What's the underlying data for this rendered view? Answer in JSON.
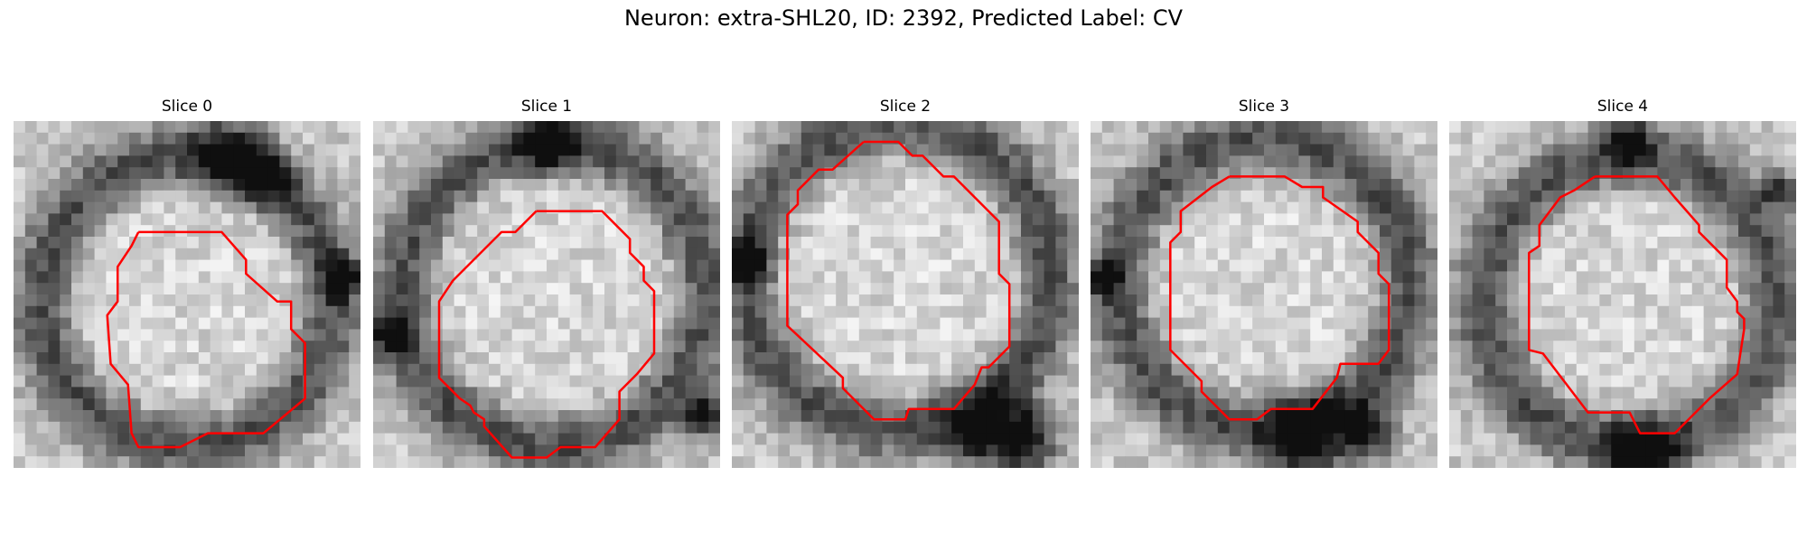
{
  "figure": {
    "title": "Neuron: extra-SHL20, ID: 2392, Predicted Label: CV"
  },
  "panels": [
    {
      "title": "Slice 0",
      "contour_color": "#ff0000",
      "center": [
        0.5,
        0.52
      ],
      "radius": 0.42,
      "ring_width": 0.09,
      "dark_spots": [
        [
          0.62,
          0.1,
          0.1
        ],
        [
          0.72,
          0.15,
          0.07
        ],
        [
          0.95,
          0.45,
          0.06
        ]
      ],
      "contour": [
        [
          0.36,
          0.32
        ],
        [
          0.6,
          0.32
        ],
        [
          0.67,
          0.4
        ],
        [
          0.67,
          0.44
        ],
        [
          0.76,
          0.52
        ],
        [
          0.8,
          0.52
        ],
        [
          0.8,
          0.6
        ],
        [
          0.84,
          0.64
        ],
        [
          0.84,
          0.8
        ],
        [
          0.72,
          0.9
        ],
        [
          0.56,
          0.9
        ],
        [
          0.48,
          0.94
        ],
        [
          0.36,
          0.94
        ],
        [
          0.34,
          0.9
        ],
        [
          0.33,
          0.76
        ],
        [
          0.28,
          0.7
        ],
        [
          0.27,
          0.56
        ],
        [
          0.3,
          0.52
        ],
        [
          0.3,
          0.42
        ],
        [
          0.34,
          0.36
        ]
      ]
    },
    {
      "title": "Slice 1",
      "contour_color": "#ff0000",
      "center": [
        0.52,
        0.5
      ],
      "radius": 0.44,
      "ring_width": 0.09,
      "dark_spots": [
        [
          0.5,
          0.06,
          0.08
        ],
        [
          0.04,
          0.62,
          0.06
        ],
        [
          0.96,
          0.85,
          0.07
        ]
      ],
      "contour": [
        [
          0.47,
          0.26
        ],
        [
          0.66,
          0.26
        ],
        [
          0.74,
          0.34
        ],
        [
          0.74,
          0.38
        ],
        [
          0.78,
          0.42
        ],
        [
          0.78,
          0.46
        ],
        [
          0.81,
          0.49
        ],
        [
          0.81,
          0.67
        ],
        [
          0.76,
          0.73
        ],
        [
          0.71,
          0.78
        ],
        [
          0.71,
          0.86
        ],
        [
          0.64,
          0.94
        ],
        [
          0.54,
          0.94
        ],
        [
          0.5,
          0.97
        ],
        [
          0.4,
          0.97
        ],
        [
          0.32,
          0.88
        ],
        [
          0.32,
          0.86
        ],
        [
          0.29,
          0.84
        ],
        [
          0.28,
          0.82
        ],
        [
          0.25,
          0.8
        ],
        [
          0.19,
          0.74
        ],
        [
          0.19,
          0.52
        ],
        [
          0.23,
          0.46
        ],
        [
          0.37,
          0.32
        ],
        [
          0.41,
          0.32
        ]
      ]
    },
    {
      "title": "Slice 2",
      "contour_color": "#ff0000",
      "center": [
        0.48,
        0.45
      ],
      "radius": 0.44,
      "ring_width": 0.09,
      "dark_spots": [
        [
          0.74,
          0.9,
          0.12
        ],
        [
          0.86,
          0.92,
          0.08
        ],
        [
          0.04,
          0.4,
          0.06
        ]
      ],
      "contour": [
        [
          0.38,
          0.06
        ],
        [
          0.48,
          0.06
        ],
        [
          0.52,
          0.1
        ],
        [
          0.55,
          0.1
        ],
        [
          0.61,
          0.16
        ],
        [
          0.64,
          0.16
        ],
        [
          0.77,
          0.29
        ],
        [
          0.77,
          0.44
        ],
        [
          0.8,
          0.47
        ],
        [
          0.8,
          0.65
        ],
        [
          0.74,
          0.71
        ],
        [
          0.72,
          0.71
        ],
        [
          0.7,
          0.76
        ],
        [
          0.64,
          0.83
        ],
        [
          0.51,
          0.83
        ],
        [
          0.5,
          0.86
        ],
        [
          0.41,
          0.86
        ],
        [
          0.32,
          0.77
        ],
        [
          0.32,
          0.74
        ],
        [
          0.16,
          0.59
        ],
        [
          0.16,
          0.27
        ],
        [
          0.19,
          0.24
        ],
        [
          0.19,
          0.2
        ],
        [
          0.25,
          0.14
        ],
        [
          0.29,
          0.14
        ]
      ]
    },
    {
      "title": "Slice 3",
      "contour_color": "#ff0000",
      "center": [
        0.5,
        0.47
      ],
      "radius": 0.42,
      "ring_width": 0.09,
      "dark_spots": [
        [
          0.62,
          0.92,
          0.12
        ],
        [
          0.8,
          0.9,
          0.08
        ],
        [
          0.04,
          0.45,
          0.05
        ]
      ],
      "contour": [
        [
          0.4,
          0.16
        ],
        [
          0.56,
          0.16
        ],
        [
          0.61,
          0.19
        ],
        [
          0.67,
          0.19
        ],
        [
          0.67,
          0.22
        ],
        [
          0.77,
          0.29
        ],
        [
          0.77,
          0.32
        ],
        [
          0.8,
          0.35
        ],
        [
          0.83,
          0.38
        ],
        [
          0.83,
          0.44
        ],
        [
          0.86,
          0.47
        ],
        [
          0.86,
          0.66
        ],
        [
          0.83,
          0.7
        ],
        [
          0.72,
          0.7
        ],
        [
          0.71,
          0.74
        ],
        [
          0.64,
          0.83
        ],
        [
          0.52,
          0.83
        ],
        [
          0.48,
          0.86
        ],
        [
          0.4,
          0.86
        ],
        [
          0.32,
          0.78
        ],
        [
          0.32,
          0.75
        ],
        [
          0.23,
          0.66
        ],
        [
          0.23,
          0.35
        ],
        [
          0.26,
          0.32
        ],
        [
          0.26,
          0.26
        ],
        [
          0.35,
          0.19
        ]
      ]
    },
    {
      "title": "Slice 4",
      "contour_color": "#ff0000",
      "center": [
        0.52,
        0.52
      ],
      "radius": 0.42,
      "ring_width": 0.09,
      "dark_spots": [
        [
          0.55,
          0.95,
          0.1
        ],
        [
          0.52,
          0.06,
          0.06
        ],
        [
          0.95,
          0.2,
          0.05
        ]
      ],
      "contour": [
        [
          0.42,
          0.16
        ],
        [
          0.6,
          0.16
        ],
        [
          0.65,
          0.22
        ],
        [
          0.72,
          0.3
        ],
        [
          0.72,
          0.32
        ],
        [
          0.8,
          0.4
        ],
        [
          0.8,
          0.48
        ],
        [
          0.83,
          0.52
        ],
        [
          0.83,
          0.55
        ],
        [
          0.85,
          0.57
        ],
        [
          0.85,
          0.6
        ],
        [
          0.83,
          0.73
        ],
        [
          0.75,
          0.8
        ],
        [
          0.65,
          0.9
        ],
        [
          0.55,
          0.9
        ],
        [
          0.52,
          0.84
        ],
        [
          0.4,
          0.84
        ],
        [
          0.27,
          0.67
        ],
        [
          0.23,
          0.66
        ],
        [
          0.23,
          0.38
        ],
        [
          0.26,
          0.36
        ],
        [
          0.26,
          0.3
        ],
        [
          0.32,
          0.22
        ],
        [
          0.36,
          0.2
        ]
      ]
    }
  ]
}
